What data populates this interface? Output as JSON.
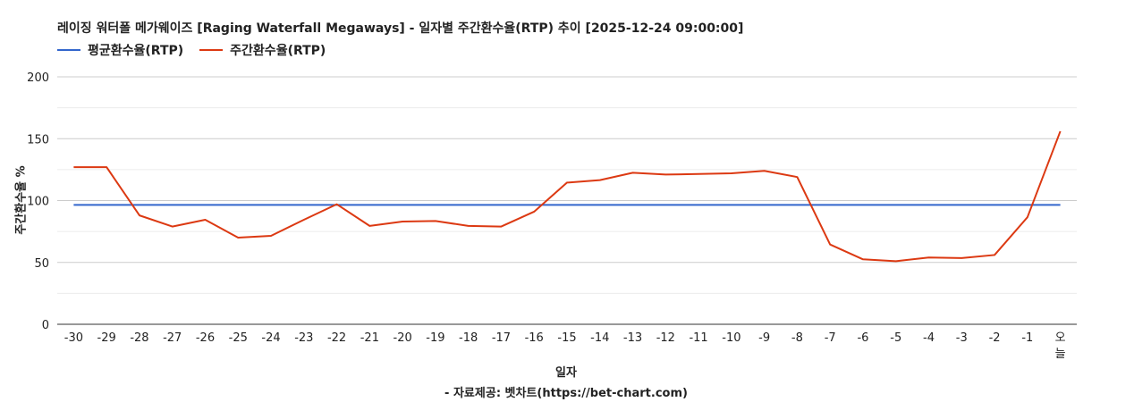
{
  "chart_data": {
    "type": "line",
    "title": "레이징 워터폴 메가웨이즈 [Raging Waterfall Megaways] - 일자별 주간환수율(RTP) 추이 [2025-12-24 09:00:00]",
    "xlabel": "일자",
    "ylabel": "주간환수율 %",
    "source": "- 자료제공: 벳차트(https://bet-chart.com)",
    "ylim": [
      0,
      200
    ],
    "yticks": [
      "0",
      "50",
      "100",
      "150",
      "200"
    ],
    "grid": true,
    "legend_position": "top-left",
    "categories": [
      "-30",
      "-29",
      "-28",
      "-27",
      "-26",
      "-25",
      "-24",
      "-23",
      "-22",
      "-21",
      "-20",
      "-19",
      "-18",
      "-17",
      "-16",
      "-15",
      "-14",
      "-13",
      "-12",
      "-11",
      "-10",
      "-9",
      "-8",
      "-7",
      "-6",
      "-5",
      "-4",
      "-3",
      "-2",
      "-1",
      "오늘"
    ],
    "series": [
      {
        "name": "평균환수율(RTP)",
        "color": "#3366cc",
        "values": [
          96.5,
          96.5,
          96.5,
          96.5,
          96.5,
          96.5,
          96.5,
          96.5,
          96.5,
          96.5,
          96.5,
          96.5,
          96.5,
          96.5,
          96.5,
          96.5,
          96.5,
          96.5,
          96.5,
          96.5,
          96.5,
          96.5,
          96.5,
          96.5,
          96.5,
          96.5,
          96.5,
          96.5,
          96.5,
          96.5,
          96.5
        ]
      },
      {
        "name": "주간환수율(RTP)",
        "color": "#dc3912",
        "values": [
          127,
          127,
          88,
          79,
          84.5,
          70,
          71.5,
          84.5,
          97,
          79.5,
          83,
          83.5,
          79.5,
          79,
          91,
          114.5,
          116.5,
          122.5,
          121,
          121.5,
          122,
          124,
          119,
          64.5,
          52.5,
          51,
          54,
          53.5,
          56,
          86.5,
          156
        ]
      }
    ]
  }
}
